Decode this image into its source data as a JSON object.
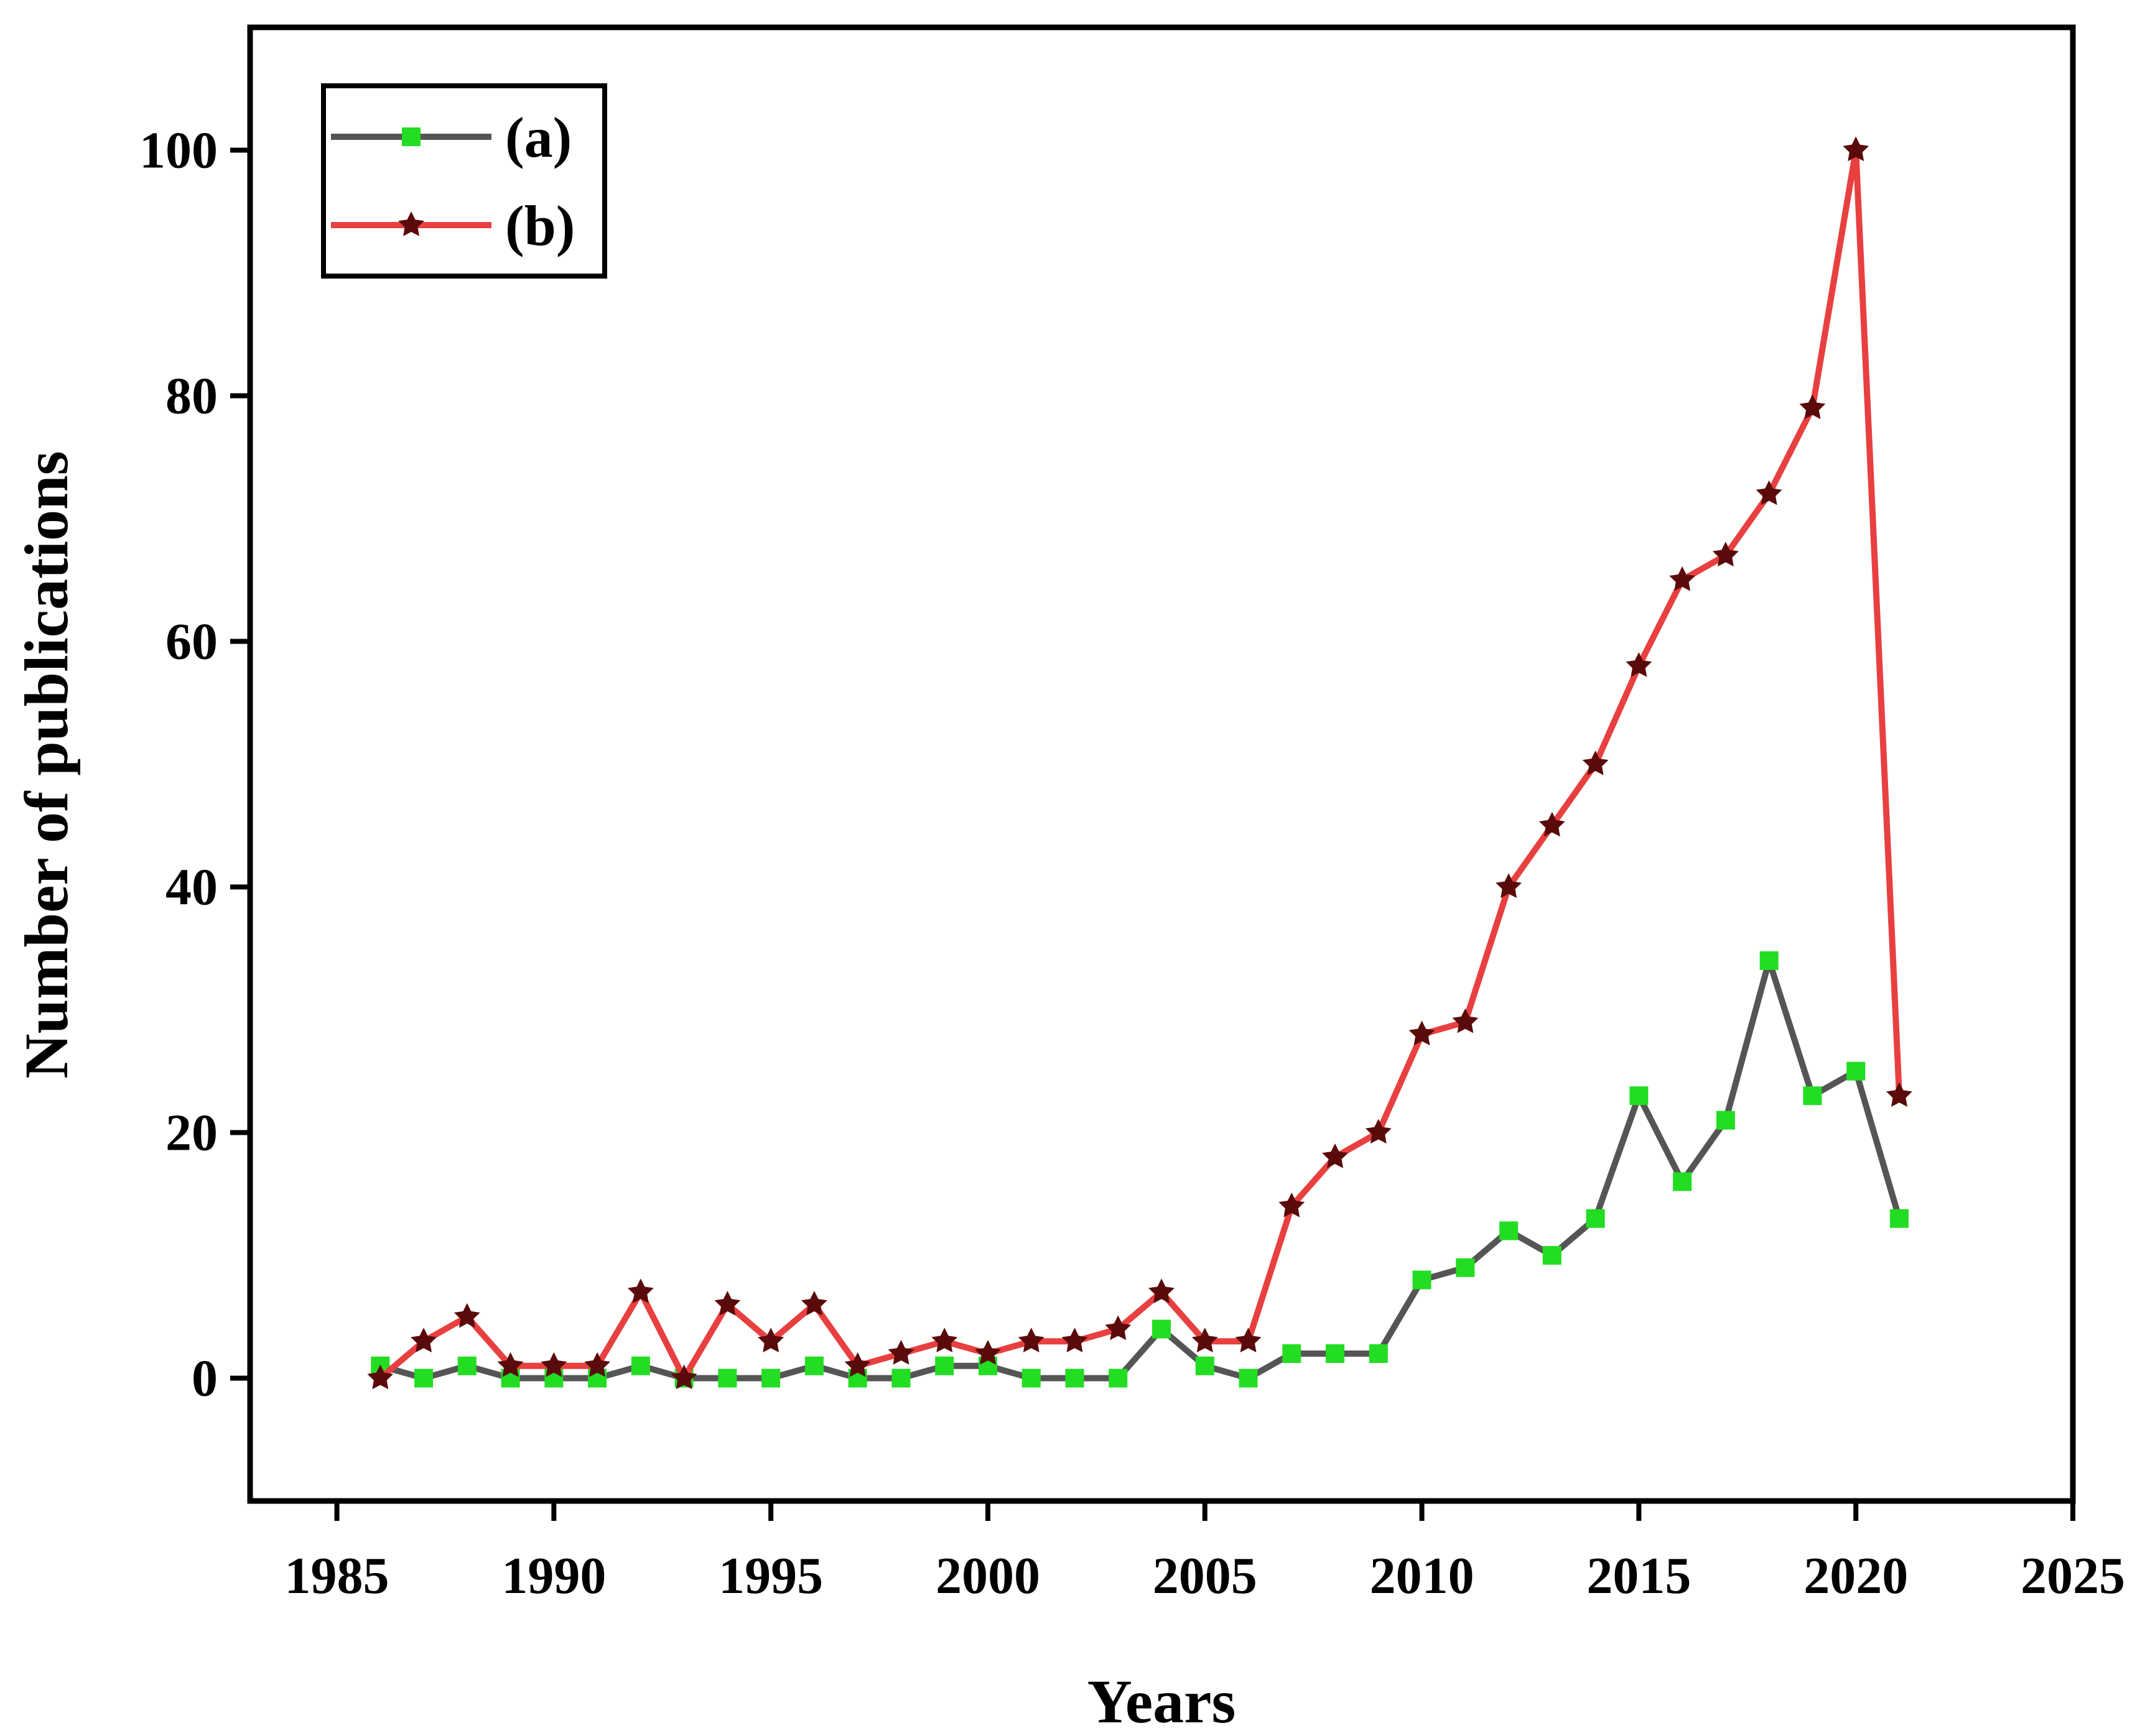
{
  "chart_data": {
    "type": "line",
    "title": "",
    "xlabel": "Years",
    "ylabel": "Number of publications",
    "xlim": [
      1983,
      2025
    ],
    "ylim": [
      -10,
      110
    ],
    "xticks": [
      1985,
      1990,
      1995,
      2000,
      2005,
      2010,
      2015,
      2020,
      2025
    ],
    "yticks": [
      0,
      20,
      40,
      60,
      80,
      100
    ],
    "x_tick_labels": [
      "1985",
      "1990",
      "1995",
      "2000",
      "2005",
      "2010",
      "2015",
      "2020",
      "2025"
    ],
    "y_tick_labels": [
      "0",
      "20",
      "40",
      "60",
      "80",
      "100"
    ],
    "grid": false,
    "legend": {
      "position": "top-left"
    },
    "x": [
      1986,
      1987,
      1988,
      1989,
      1990,
      1991,
      1992,
      1993,
      1994,
      1995,
      1996,
      1997,
      1998,
      1999,
      2000,
      2001,
      2002,
      2003,
      2004,
      2005,
      2006,
      2007,
      2008,
      2009,
      2010,
      2011,
      2012,
      2013,
      2014,
      2015,
      2016,
      2017,
      2018,
      2019,
      2020,
      2021
    ],
    "series": [
      {
        "name": "(a)",
        "line_color": "#555555",
        "marker_color": "#22dd22",
        "marker": "square",
        "values": [
          1,
          0,
          1,
          0,
          0,
          0,
          1,
          0,
          0,
          0,
          1,
          0,
          0,
          1,
          1,
          0,
          0,
          0,
          4,
          1,
          0,
          2,
          2,
          2,
          8,
          9,
          12,
          10,
          13,
          23,
          16,
          21,
          34,
          23,
          25,
          13
        ]
      },
      {
        "name": "(b)",
        "line_color": "#e84040",
        "marker_color": "#5a0a0a",
        "marker": "star",
        "values": [
          0,
          3,
          5,
          1,
          1,
          1,
          7,
          0,
          6,
          3,
          6,
          1,
          2,
          3,
          2,
          3,
          3,
          4,
          7,
          3,
          3,
          14,
          18,
          20,
          28,
          29,
          40,
          45,
          50,
          58,
          65,
          67,
          72,
          79,
          100,
          23
        ]
      }
    ]
  }
}
